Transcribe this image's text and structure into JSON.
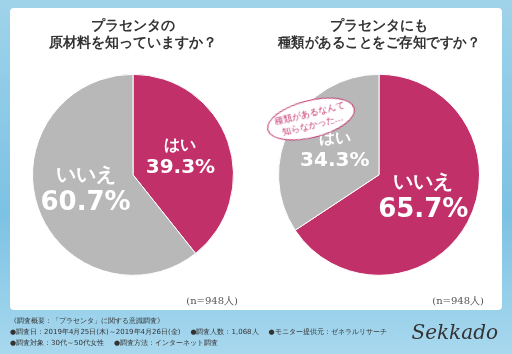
{
  "chart_data": [
    {
      "type": "pie",
      "title": [
        "プラセンタの",
        "原材料を知っていますか？"
      ],
      "categories": [
        "はい",
        "いいえ"
      ],
      "values": [
        39.3,
        60.7
      ],
      "value_labels": [
        "39.3%",
        "60.7%"
      ],
      "colors": [
        "#c2306a",
        "#b8b8b8"
      ],
      "data_labels": true,
      "legend": false,
      "annotation": "(n=948人)"
    },
    {
      "type": "pie",
      "title": [
        "プラセンタにも",
        "種類があることをご存知ですか？"
      ],
      "categories": [
        "いいえ",
        "はい"
      ],
      "values": [
        65.7,
        34.3
      ],
      "value_labels": [
        "65.7%",
        "34.3%"
      ],
      "colors": [
        "#c2306a",
        "#b8b8b8"
      ],
      "data_labels": true,
      "legend": false,
      "annotation": "(n=948人)",
      "callout": [
        "種類があるなんて",
        "知らなかった…"
      ]
    }
  ],
  "footer": {
    "heading": "《調査概要：「プラセンタ」に関する意識調査》",
    "items": [
      "●調査日：2019年4月25日(木)～2019年4月26日(金)",
      "●調査方法：インターネット調査",
      "●調査人数：1,068人",
      "●調査対象：30代～50代女性",
      "●モニター提供元：ゼネラルリサーチ"
    ]
  },
  "brand": "Sekkado"
}
